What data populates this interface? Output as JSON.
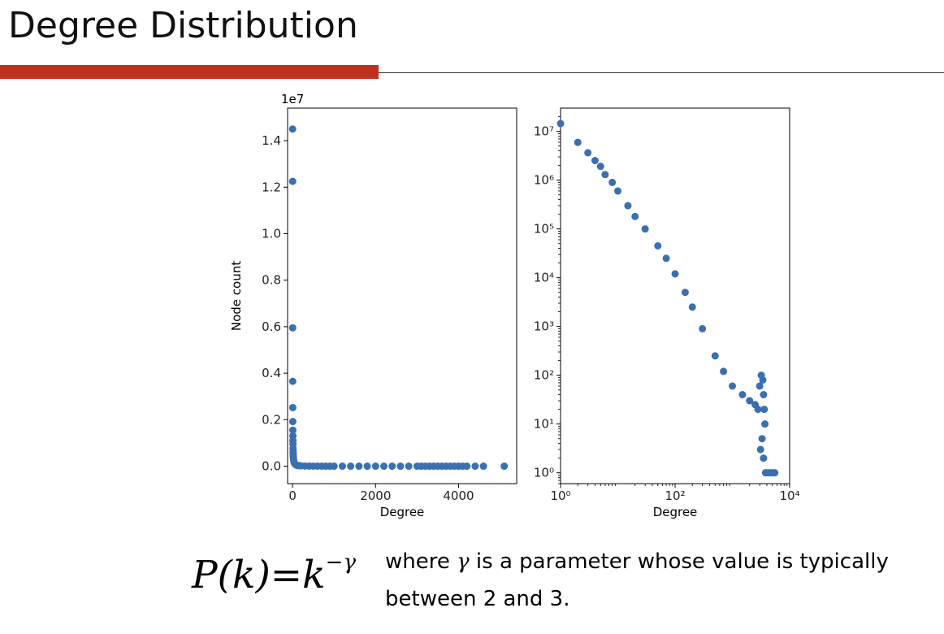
{
  "slide": {
    "title": "Degree Distribution",
    "accent_color": "#c0311e"
  },
  "formula": {
    "lhs": "P(k)",
    "eq": "=",
    "base": "k",
    "exponent": "−γ"
  },
  "caption": {
    "pre": "where ",
    "symbol": "γ",
    "post": " is a parameter whose value is typically",
    "line2": "between 2 and 3."
  },
  "chart_data": [
    {
      "type": "scatter",
      "xlabel": "Degree",
      "ylabel": "Node count",
      "y_offset_label": "1e7",
      "xlim": [
        -120,
        5400
      ],
      "ylim": [
        -750000,
        15400000
      ],
      "xticks": [
        0,
        2000,
        4000
      ],
      "xtick_labels": [
        "0",
        "2000",
        "4000"
      ],
      "yticks": [
        0,
        2000000,
        4000000,
        6000000,
        8000000,
        10000000,
        12000000,
        14000000
      ],
      "ytick_labels": [
        "0.0",
        "0.2",
        "0.4",
        "0.6",
        "0.8",
        "1.0",
        "1.2",
        "1.4"
      ],
      "marker_color": "#3a6fb0",
      "series": [
        {
          "x": [
            1,
            2,
            3,
            4,
            5,
            6,
            7,
            8,
            9,
            10,
            12,
            14,
            16,
            18,
            20,
            25,
            30,
            40,
            50,
            70,
            100,
            150,
            200,
            300,
            400,
            500,
            600,
            700,
            800,
            900,
            1000,
            1200,
            1400,
            1600,
            1800,
            2000,
            2200,
            2400,
            2600,
            2800,
            3000,
            3100,
            3200,
            3300,
            3400,
            3500,
            3600,
            3700,
            3800,
            3900,
            4000,
            4100,
            4200,
            4400,
            4600,
            5100
          ],
          "y": [
            14500000,
            12250000,
            5950000,
            3650000,
            2520000,
            1920000,
            1550000,
            1300000,
            1100000,
            950000,
            760000,
            620000,
            520000,
            440000,
            380000,
            280000,
            220000,
            150000,
            110000,
            70000,
            40000,
            25000,
            15000,
            8000,
            5000,
            3000,
            2000,
            1500,
            1000,
            800,
            600,
            400,
            300,
            200,
            150,
            100,
            80,
            60,
            50,
            40,
            30,
            30,
            25,
            20,
            15,
            10,
            8,
            5,
            3,
            2,
            2,
            1,
            1,
            1,
            1,
            1
          ]
        }
      ]
    },
    {
      "type": "scatter",
      "xlabel": "Degree",
      "ylabel": "",
      "x_scale": "log",
      "y_scale": "log",
      "xlim": [
        1,
        10000
      ],
      "ylim": [
        0.6,
        30000000
      ],
      "xticks": [
        1,
        100,
        10000
      ],
      "xtick_labels": [
        "10⁰",
        "10²",
        "10⁴"
      ],
      "yticks": [
        1,
        10,
        100,
        1000,
        10000,
        100000,
        1000000,
        10000000
      ],
      "ytick_labels": [
        "10⁰",
        "10¹",
        "10²",
        "10³",
        "10⁴",
        "10⁵",
        "10⁶",
        "10⁷"
      ],
      "marker_color": "#3a6fb0",
      "series": [
        {
          "x": [
            1,
            2,
            3,
            4,
            5,
            6,
            8,
            10,
            15,
            20,
            30,
            50,
            70,
            100,
            150,
            200,
            300,
            500,
            700,
            1000,
            1500,
            2000,
            2500,
            2800,
            3000,
            3200,
            3400,
            3500,
            3600,
            3700,
            3300,
            3100,
            3500,
            3800,
            4000,
            4500,
            5000,
            5500
          ],
          "y": [
            14500000,
            5950000,
            3650000,
            2520000,
            1920000,
            1300000,
            900000,
            600000,
            300000,
            180000,
            100000,
            45000,
            25000,
            12000,
            5000,
            2500,
            900,
            250,
            120,
            60,
            40,
            30,
            25,
            20,
            60,
            100,
            80,
            40,
            20,
            10,
            5,
            3,
            2,
            1,
            1,
            1,
            1,
            1
          ]
        }
      ]
    }
  ]
}
